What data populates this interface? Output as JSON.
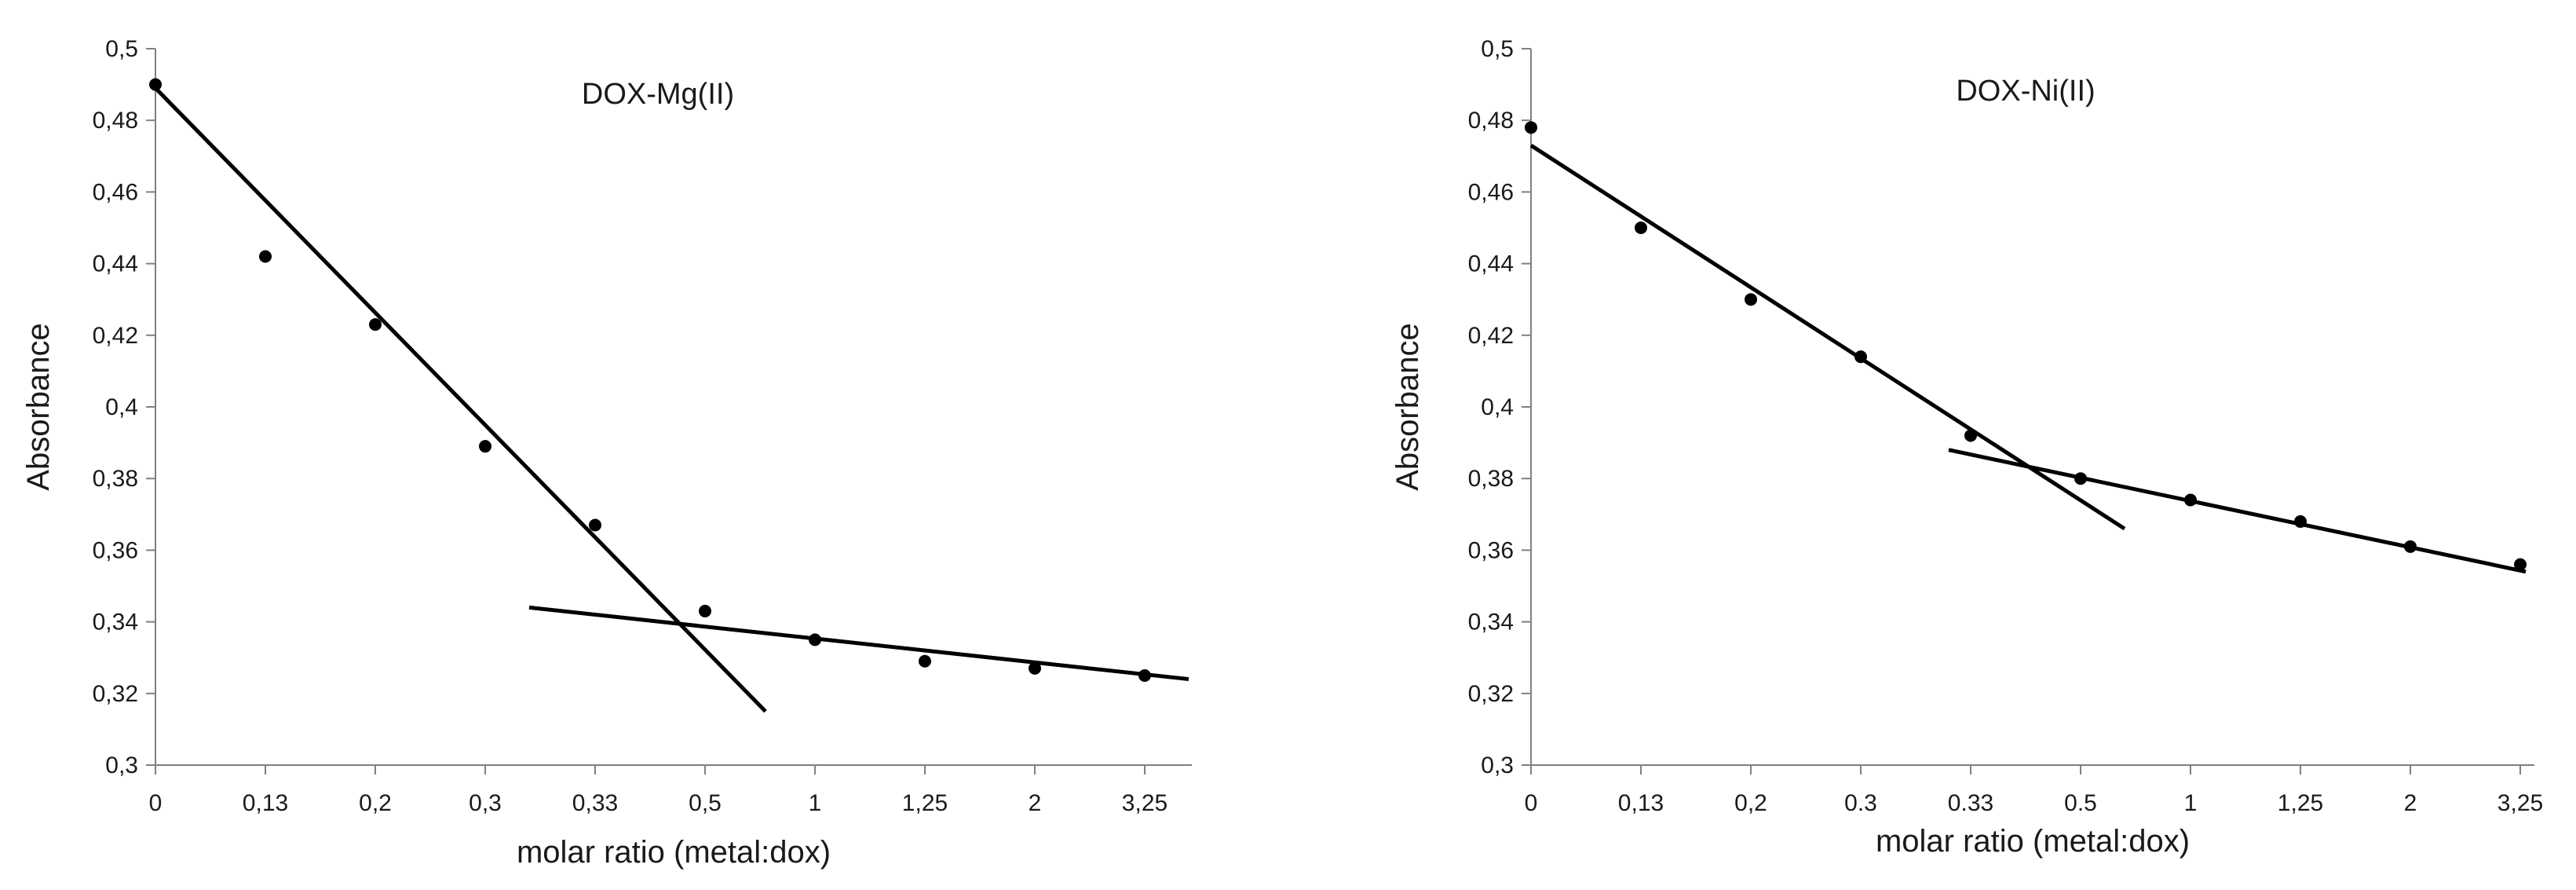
{
  "chart_data": [
    {
      "type": "scatter",
      "title": "DOX-Mg(II)",
      "xlabel": "molar ratio (metal:dox)",
      "ylabel": "Absorbance",
      "categories": [
        "0",
        "0,13",
        "0,2",
        "0,3",
        "0,33",
        "0,5",
        "1",
        "1,25",
        "2",
        "3,25"
      ],
      "ylim": [
        0.3,
        0.5
      ],
      "yticks": [
        "0,3",
        "0,32",
        "0,34",
        "0,36",
        "0,38",
        "0,4",
        "0,42",
        "0,44",
        "0,46",
        "0,48",
        "0,5"
      ],
      "grid": false,
      "series": [
        {
          "values": [
            0.49,
            0.442,
            0.423,
            0.389,
            0.367,
            0.343,
            0.335,
            0.329,
            0.327,
            0.325
          ]
        }
      ],
      "trendlines": [
        {
          "x_index": [
            0,
            5.55
          ],
          "y": [
            0.489,
            0.315
          ]
        },
        {
          "x_index": [
            3.4,
            9.4
          ],
          "y": [
            0.344,
            0.324
          ]
        }
      ]
    },
    {
      "type": "scatter",
      "title": "DOX-Ni(II)",
      "xlabel": "molar ratio (metal:dox)",
      "ylabel": "Absorbance",
      "categories": [
        "0",
        "0,13",
        "0,2",
        "0.3",
        "0.33",
        "0.5",
        "1",
        "1,25",
        "2",
        "3,25"
      ],
      "ylim": [
        0.3,
        0.5
      ],
      "yticks": [
        "0,3",
        "0,32",
        "0,34",
        "0,36",
        "0,38",
        "0,4",
        "0,42",
        "0,44",
        "0,46",
        "0,48",
        "0,5"
      ],
      "grid": false,
      "series": [
        {
          "values": [
            0.478,
            0.45,
            0.43,
            0.414,
            0.392,
            0.38,
            0.374,
            0.368,
            0.361,
            0.356
          ]
        }
      ],
      "trendlines": [
        {
          "x_index": [
            0,
            5.4
          ],
          "y": [
            0.473,
            0.366
          ]
        },
        {
          "x_index": [
            3.8,
            9.05
          ],
          "y": [
            0.388,
            0.354
          ]
        }
      ]
    }
  ],
  "colors": {
    "marker": "#000000",
    "line": "#000000",
    "axis": "#808080",
    "text": "#1a1a1a"
  }
}
